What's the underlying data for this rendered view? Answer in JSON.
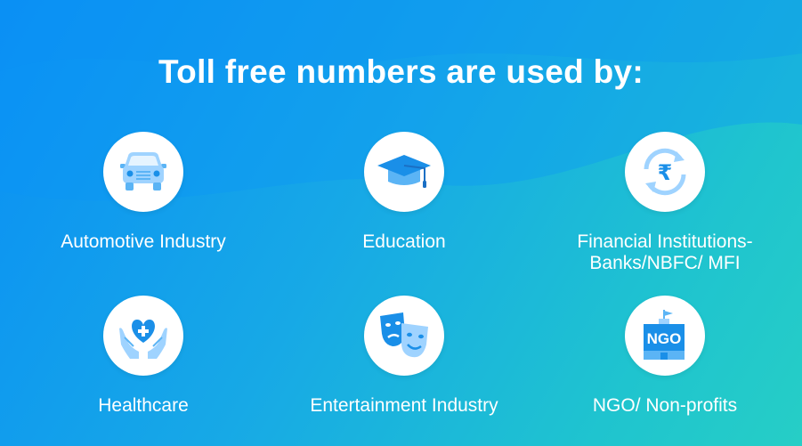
{
  "title": "Toll free numbers are used by:",
  "colors": {
    "icon_light": "#9fd3ff",
    "icon_dark": "#1a8fe8",
    "icon_mid": "#5bb4f5"
  },
  "items": [
    {
      "label": "Automotive Industry",
      "icon": "car-icon"
    },
    {
      "label": "Education",
      "icon": "graduation-cap-icon"
    },
    {
      "label_lines": [
        "Financial Institutions-",
        "Banks/NBFC/ MFI"
      ],
      "icon": "rupee-cycle-icon"
    },
    {
      "label": "Healthcare",
      "icon": "heart-hands-icon"
    },
    {
      "label": "Entertainment Industry",
      "icon": "theater-masks-icon"
    },
    {
      "label": "NGO/ Non-profits",
      "icon": "ngo-building-icon",
      "icon_text": "NGO"
    }
  ]
}
